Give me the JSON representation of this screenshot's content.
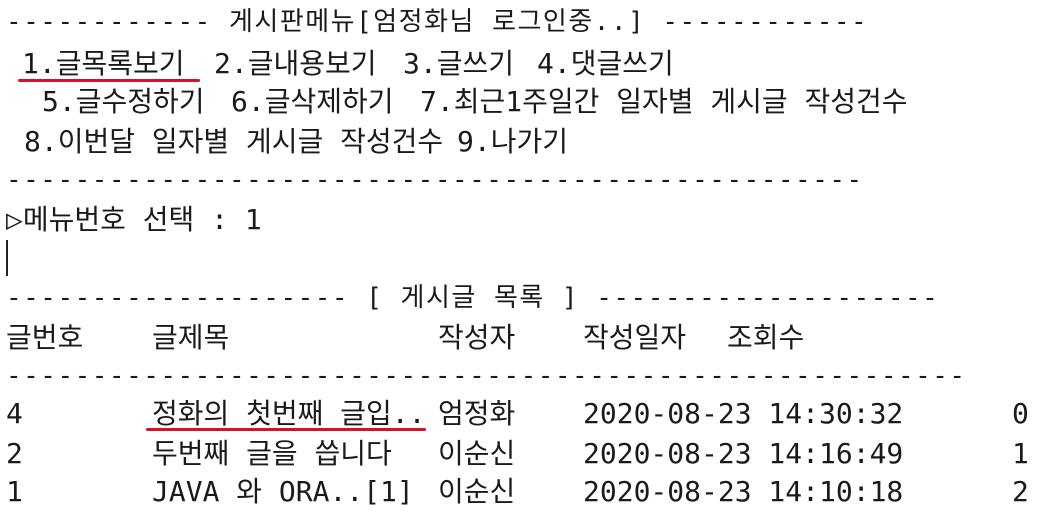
{
  "console": {
    "header_line": "------------ 게시판메뉴[엄정화님 로그인중..] ------------",
    "menu": {
      "item1": "1.글목록보기",
      "item2": "2.글내용보기",
      "item3": "3.글쓰기",
      "item4": "4.댓글쓰기",
      "item5": "5.글수정하기",
      "item6": "6.글삭제하기",
      "item7": "7.최근1주일간 일자별 게시글 작성건수",
      "item8": "8.이번달 일자별 게시글 작성건수",
      "item9": "9.나가기"
    },
    "separator": "--------------------------------------------------",
    "prompt": "▷메뉴번호 선택 : 1",
    "list_header_line": "-------------------- [ 게시글 목록 ] --------------------",
    "columns": [
      "글번호",
      "글제목",
      "작성자",
      "작성일자",
      "조회수"
    ],
    "separator2": "--------------------------------------------------------",
    "rows": [
      {
        "no": "4",
        "title": "정화의 첫번째 글입..",
        "writer": "엄정화",
        "date": "2020-08-23 14:30:32",
        "views": "0"
      },
      {
        "no": "2",
        "title": "두번째 글을 씁니다",
        "writer": "이순신",
        "date": "2020-08-23 14:16:49",
        "views": "1"
      },
      {
        "no": "1",
        "title": "JAVA 와 ORA..[1]",
        "writer": "이순신",
        "date": "2020-08-23 14:10:18",
        "views": "2"
      }
    ]
  },
  "colors": {
    "annotation_underline": "#d8102a",
    "text": "#1a1a1a",
    "background": "#ffffff"
  }
}
